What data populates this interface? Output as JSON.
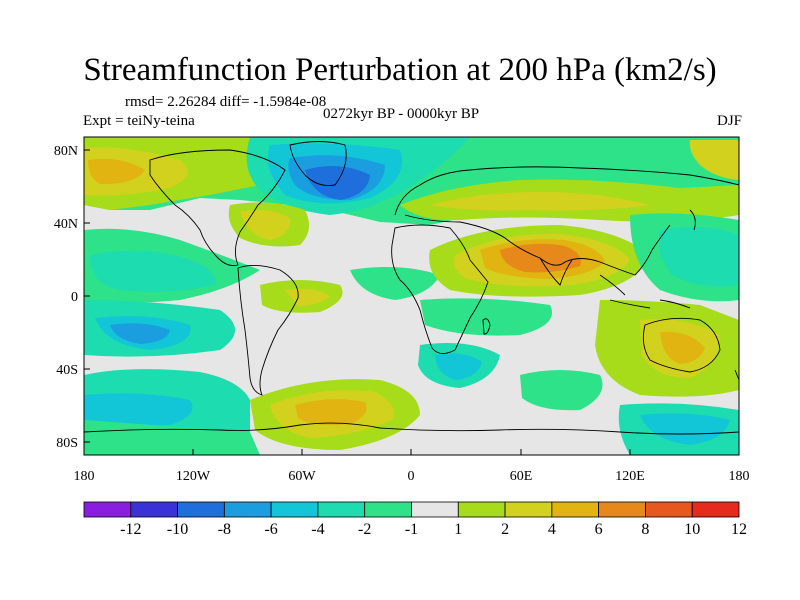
{
  "title": "Streamfunction Perturbation at 200 hPa (km2/s)",
  "stats": "rmsd= 2.26284 diff= -1.5984e-08",
  "period": "0272kyr BP - 0000kyr BP",
  "experiment": "Expt = teiNy-teina",
  "season": "DJF",
  "lat_labels": [
    "80N",
    "40N",
    "0",
    "40S",
    "80S"
  ],
  "lon_labels": [
    "180",
    "120W",
    "60W",
    "0",
    "60E",
    "120E",
    "180"
  ],
  "colorbar": {
    "labels": [
      "-12",
      "-10",
      "-8",
      "-6",
      "-4",
      "-2",
      "-1",
      "1",
      "2",
      "4",
      "6",
      "8",
      "10",
      "12"
    ],
    "colors": [
      "#8a1ee0",
      "#3a32d8",
      "#1e6edc",
      "#1a9ee0",
      "#12c6d8",
      "#1cdcb0",
      "#2ee28a",
      "#e6e6e6",
      "#a6dc1a",
      "#d2d21e",
      "#e2b412",
      "#e6881a",
      "#e6581e",
      "#e62a1e"
    ]
  },
  "palette": {
    "neutral": "#e6e6e6",
    "coast": "#000000"
  }
}
